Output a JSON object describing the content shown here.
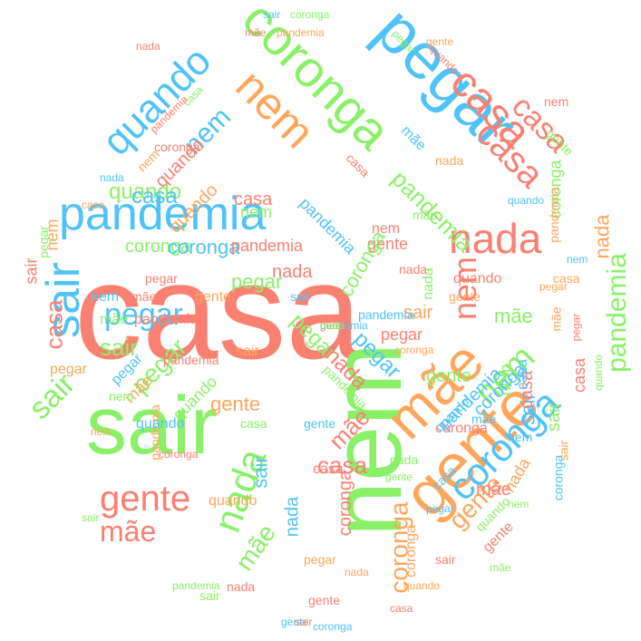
{
  "palette": {
    "salmon": "#FA8072",
    "sky": "#4FC3F7",
    "orange": "#FFA65C",
    "green": "#8AF068"
  },
  "words": [
    {
      "text": "casa",
      "color": "salmon"
    },
    {
      "text": "sair",
      "color": "green"
    },
    {
      "text": "nem",
      "color": "green"
    },
    {
      "text": "pegar",
      "color": "sky"
    },
    {
      "text": "pandemia",
      "color": "sky"
    },
    {
      "text": "gente",
      "color": "orange"
    },
    {
      "text": "mãe",
      "color": "orange"
    },
    {
      "text": "coronga",
      "color": "green"
    },
    {
      "text": "nem",
      "color": "orange"
    },
    {
      "text": "casa",
      "color": "salmon"
    },
    {
      "text": "sair",
      "color": "sky"
    },
    {
      "text": "nada",
      "color": "salmon"
    },
    {
      "text": "quando",
      "color": "sky"
    },
    {
      "text": "coronga",
      "color": "sky"
    },
    {
      "text": "casa",
      "color": "salmon"
    },
    {
      "text": "gente",
      "color": "salmon"
    },
    {
      "text": "nada",
      "color": "green"
    },
    {
      "text": "mãe",
      "color": "salmon"
    },
    {
      "text": "sair",
      "color": "green"
    },
    {
      "text": "casa",
      "color": "salmon"
    },
    {
      "text": "nem",
      "color": "green"
    },
    {
      "text": "pandemia",
      "color": "green"
    },
    {
      "text": "coronga",
      "color": "orange"
    },
    {
      "text": "nem",
      "color": "salmon"
    },
    {
      "text": "pegar",
      "color": "sky"
    },
    {
      "text": "gente",
      "color": "orange"
    },
    {
      "text": "pegar",
      "color": "green"
    },
    {
      "text": "nem",
      "color": "sky"
    },
    {
      "text": "coronga",
      "color": "green"
    },
    {
      "text": "pandemia",
      "color": "green"
    },
    {
      "text": "casa",
      "color": "salmon"
    },
    {
      "text": "mãe",
      "color": "green"
    },
    {
      "text": "nada",
      "color": "orange"
    },
    {
      "text": "sair",
      "color": "green"
    },
    {
      "text": "pegar",
      "color": "green"
    },
    {
      "text": "mãe",
      "color": "salmon"
    },
    {
      "text": "quando",
      "color": "green"
    },
    {
      "text": "nada",
      "color": "salmon"
    },
    {
      "text": "sair",
      "color": "sky"
    },
    {
      "text": "pegar",
      "color": "sky"
    },
    {
      "text": "casa",
      "color": "sky"
    },
    {
      "text": "coronga",
      "color": "sky"
    },
    {
      "text": "sair",
      "color": "sky"
    },
    {
      "text": "pandemia",
      "color": "salmon"
    },
    {
      "text": "gente",
      "color": "salmon"
    },
    {
      "text": "nem",
      "color": "orange"
    },
    {
      "text": "casa",
      "color": "salmon"
    },
    {
      "text": "coronga",
      "color": "green"
    },
    {
      "text": "quando",
      "color": "salmon"
    },
    {
      "text": "pandemia",
      "color": "sky"
    },
    {
      "text": "casa",
      "color": "salmon"
    },
    {
      "text": "gente",
      "color": "orange"
    },
    {
      "text": "mãe",
      "color": "green"
    },
    {
      "text": "nada",
      "color": "salmon"
    },
    {
      "text": "sair",
      "color": "orange"
    },
    {
      "text": "coronga",
      "color": "salmon"
    },
    {
      "text": "quando",
      "color": "orange"
    },
    {
      "text": "pegar",
      "color": "green"
    },
    {
      "text": "casa",
      "color": "salmon"
    },
    {
      "text": "nem",
      "color": "green"
    },
    {
      "text": "mãe",
      "color": "salmon"
    },
    {
      "text": "gente",
      "color": "salmon"
    },
    {
      "text": "pandemia",
      "color": "sky"
    },
    {
      "text": "sair",
      "color": "green"
    },
    {
      "text": "nada",
      "color": "orange"
    },
    {
      "text": "coronga",
      "color": "sky"
    },
    {
      "text": "casa",
      "color": "salmon"
    },
    {
      "text": "quando",
      "color": "green"
    },
    {
      "text": "nem",
      "color": "green"
    },
    {
      "text": "pegar",
      "color": "salmon"
    },
    {
      "text": "gente",
      "color": "green"
    },
    {
      "text": "mãe",
      "color": "orange"
    },
    {
      "text": "pandemia",
      "color": "orange"
    },
    {
      "text": "nada",
      "color": "sky"
    },
    {
      "text": "casa",
      "color": "salmon"
    },
    {
      "text": "sair",
      "color": "salmon"
    },
    {
      "text": "coronga",
      "color": "green"
    },
    {
      "text": "quando",
      "color": "sky"
    },
    {
      "text": "pegar",
      "color": "orange"
    },
    {
      "text": "nem",
      "color": "sky"
    },
    {
      "text": "mãe",
      "color": "green"
    },
    {
      "text": "gente",
      "color": "orange"
    },
    {
      "text": "pandemia",
      "color": "salmon"
    },
    {
      "text": "nada",
      "color": "green"
    },
    {
      "text": "casa",
      "color": "sky"
    },
    {
      "text": "sair",
      "color": "orange"
    },
    {
      "text": "coronga",
      "color": "salmon"
    },
    {
      "text": "quando",
      "color": "salmon"
    },
    {
      "text": "pegar",
      "color": "green"
    },
    {
      "text": "nem",
      "color": "salmon"
    },
    {
      "text": "mãe",
      "color": "sky"
    },
    {
      "text": "gente",
      "color": "green"
    },
    {
      "text": "pandemia",
      "color": "orange"
    },
    {
      "text": "nada",
      "color": "salmon"
    },
    {
      "text": "casa",
      "color": "orange"
    },
    {
      "text": "sair",
      "color": "sky"
    },
    {
      "text": "coronga",
      "color": "orange"
    },
    {
      "text": "quando",
      "color": "green"
    },
    {
      "text": "pegar",
      "color": "salmon"
    },
    {
      "text": "nem",
      "color": "orange"
    },
    {
      "text": "mãe",
      "color": "green"
    },
    {
      "text": "gente",
      "color": "sky"
    },
    {
      "text": "pandemia",
      "color": "green"
    },
    {
      "text": "nada",
      "color": "salmon"
    },
    {
      "text": "casa",
      "color": "green"
    },
    {
      "text": "sair",
      "color": "salmon"
    },
    {
      "text": "coronga",
      "color": "sky"
    },
    {
      "text": "quando",
      "color": "orange"
    },
    {
      "text": "pegar",
      "color": "sky"
    },
    {
      "text": "nem",
      "color": "green"
    },
    {
      "text": "mãe",
      "color": "salmon"
    },
    {
      "text": "gente",
      "color": "orange"
    },
    {
      "text": "pandemia",
      "color": "salmon"
    },
    {
      "text": "nada",
      "color": "orange"
    },
    {
      "text": "casa",
      "color": "salmon"
    },
    {
      "text": "sair",
      "color": "green"
    },
    {
      "text": "coronga",
      "color": "salmon"
    },
    {
      "text": "quando",
      "color": "sky"
    },
    {
      "text": "pegar",
      "color": "orange"
    },
    {
      "text": "nem",
      "color": "sky"
    },
    {
      "text": "mãe",
      "color": "orange"
    },
    {
      "text": "gente",
      "color": "salmon"
    },
    {
      "text": "pandemia",
      "color": "sky"
    },
    {
      "text": "nada",
      "color": "green"
    },
    {
      "text": "casa",
      "color": "sky"
    },
    {
      "text": "sair",
      "color": "orange"
    },
    {
      "text": "coronga",
      "color": "green"
    },
    {
      "text": "quando",
      "color": "salmon"
    },
    {
      "text": "pegar",
      "color": "green"
    },
    {
      "text": "nem",
      "color": "salmon"
    },
    {
      "text": "mãe",
      "color": "sky"
    },
    {
      "text": "gente",
      "color": "green"
    },
    {
      "text": "pandemia",
      "color": "orange"
    },
    {
      "text": "nada",
      "color": "salmon"
    },
    {
      "text": "casa",
      "color": "green"
    },
    {
      "text": "sair",
      "color": "sky"
    },
    {
      "text": "coronga",
      "color": "orange"
    },
    {
      "text": "quando",
      "color": "green"
    },
    {
      "text": "pegar",
      "color": "salmon"
    },
    {
      "text": "nem",
      "color": "orange"
    },
    {
      "text": "mãe",
      "color": "green"
    },
    {
      "text": "gente",
      "color": "sky"
    },
    {
      "text": "pandemia",
      "color": "green"
    },
    {
      "text": "nada",
      "color": "orange"
    },
    {
      "text": "casa",
      "color": "salmon"
    },
    {
      "text": "sair",
      "color": "salmon"
    },
    {
      "text": "coronga",
      "color": "sky"
    },
    {
      "text": "quando",
      "color": "orange"
    },
    {
      "text": "pegar",
      "color": "sky"
    },
    {
      "text": "nem",
      "color": "green"
    },
    {
      "text": "mãe",
      "color": "salmon"
    },
    {
      "text": "gente",
      "color": "orange"
    },
    {
      "text": "pandemia",
      "color": "salmon"
    },
    {
      "text": "nada",
      "color": "sky"
    },
    {
      "text": "casa",
      "color": "orange"
    },
    {
      "text": "sair",
      "color": "green"
    },
    {
      "text": "coronga",
      "color": "salmon"
    },
    {
      "text": "quando",
      "color": "sky"
    },
    {
      "text": "pegar",
      "color": "orange"
    },
    {
      "text": "nem",
      "color": "sky"
    },
    {
      "text": "mãe",
      "color": "orange"
    },
    {
      "text": "gente",
      "color": "salmon"
    },
    {
      "text": "pandemia",
      "color": "sky"
    },
    {
      "text": "nada",
      "color": "green"
    }
  ]
}
